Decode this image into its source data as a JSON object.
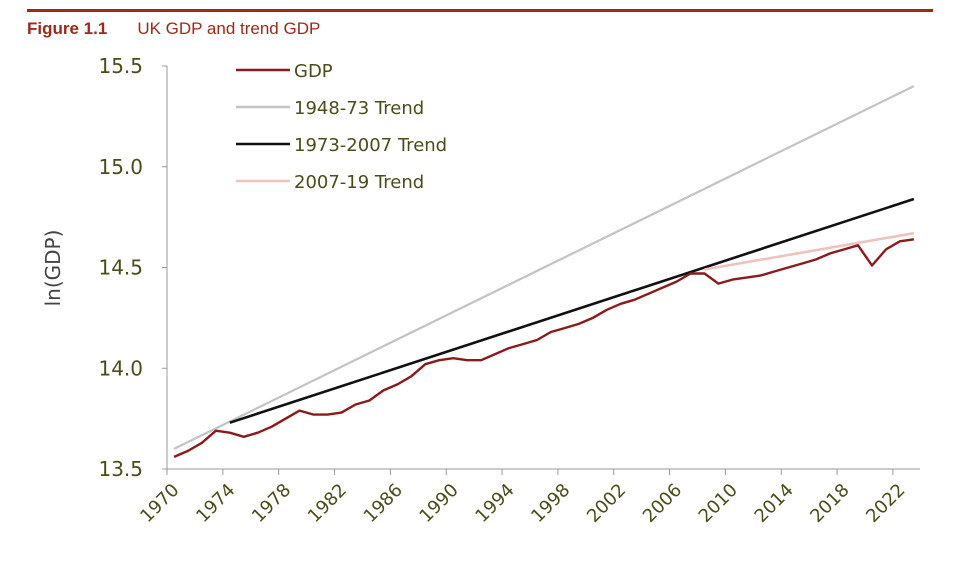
{
  "figure": {
    "number": "Figure 1.1",
    "title": "UK GDP and trend GDP"
  },
  "colors": {
    "rule": "#9b2a1a",
    "gdp": "#8b1a1a",
    "trend_1948_73": "#c3c3c3",
    "trend_1973_2007": "#111111",
    "trend_2007_19": "#efc2bd"
  },
  "chart_data": {
    "type": "line",
    "title": "UK GDP and trend GDP",
    "xlabel": "",
    "ylabel": "ln(GDP)",
    "ylim": [
      13.5,
      15.5
    ],
    "yticks": [
      "13.5",
      "14.0",
      "14.5",
      "15.0",
      "15.5"
    ],
    "ytick_values": [
      13.5,
      14.0,
      14.5,
      15.0,
      15.5
    ],
    "xlim": [
      1970,
      2024
    ],
    "xticks": [
      "1970",
      "1974",
      "1978",
      "1982",
      "1986",
      "1990",
      "1994",
      "1998",
      "2002",
      "2006",
      "2010",
      "2014",
      "2018",
      "2022"
    ],
    "grid": false,
    "legend": "top-left",
    "series": [
      {
        "name": "GDP",
        "key": "gdp",
        "x": [
          1970,
          1971,
          1972,
          1973,
          1974,
          1975,
          1976,
          1977,
          1978,
          1979,
          1980,
          1981,
          1982,
          1983,
          1984,
          1985,
          1986,
          1987,
          1988,
          1989,
          1990,
          1991,
          1992,
          1993,
          1994,
          1995,
          1996,
          1997,
          1998,
          1999,
          2000,
          2001,
          2002,
          2003,
          2004,
          2005,
          2006,
          2007,
          2008,
          2009,
          2010,
          2011,
          2012,
          2013,
          2014,
          2015,
          2016,
          2017,
          2018,
          2019,
          2020,
          2021,
          2022,
          2023
        ],
        "values": [
          13.56,
          13.59,
          13.63,
          13.69,
          13.68,
          13.66,
          13.68,
          13.71,
          13.75,
          13.79,
          13.77,
          13.77,
          13.78,
          13.82,
          13.84,
          13.89,
          13.92,
          13.96,
          14.02,
          14.04,
          14.05,
          14.04,
          14.04,
          14.07,
          14.1,
          14.12,
          14.14,
          14.18,
          14.2,
          14.22,
          14.25,
          14.29,
          14.32,
          14.34,
          14.37,
          14.4,
          14.43,
          14.47,
          14.47,
          14.42,
          14.44,
          14.45,
          14.46,
          14.48,
          14.5,
          14.52,
          14.54,
          14.57,
          14.59,
          14.61,
          14.51,
          14.59,
          14.63,
          14.64
        ]
      },
      {
        "name": "1948-73 Trend",
        "key": "trend_1948_73",
        "x": [
          1970,
          2023
        ],
        "values": [
          13.6,
          15.4
        ]
      },
      {
        "name": "1973-2007 Trend",
        "key": "trend_1973_2007",
        "x": [
          1974,
          2023
        ],
        "values": [
          13.73,
          14.84
        ]
      },
      {
        "name": "2007-19 Trend",
        "key": "trend_2007_19",
        "x": [
          2008,
          2023
        ],
        "values": [
          14.49,
          14.67
        ]
      }
    ]
  }
}
